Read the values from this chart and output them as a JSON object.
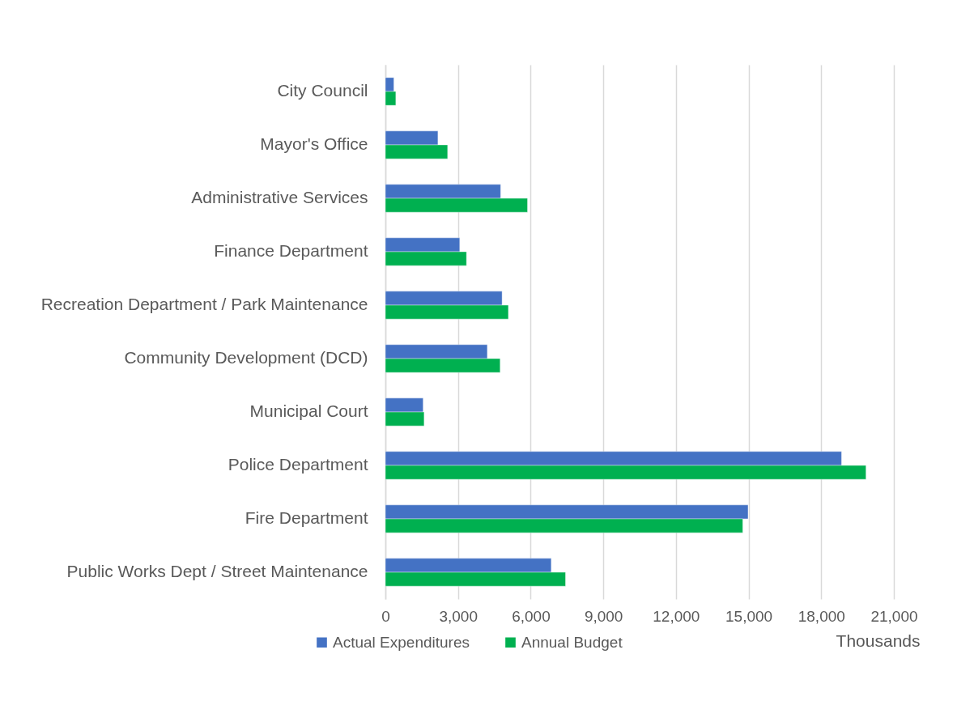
{
  "chart_data": {
    "type": "bar",
    "orientation": "horizontal",
    "xlabel": "Thousands",
    "categories": [
      "City Council",
      "Mayor's Office",
      "Administrative Services",
      "Finance Department",
      "Recreation Department / Park Maintenance",
      "Community Development (DCD)",
      "Municipal Court",
      "Police Department",
      "Fire Department",
      "Public Works Dept / Street Maintenance"
    ],
    "series": [
      {
        "name": "Actual Expenditures",
        "color": "#4472c4",
        "values": [
          350,
          2170,
          4760,
          3070,
          4820,
          4210,
          1560,
          18840,
          14980,
          6850
        ]
      },
      {
        "name": "Annual Budget",
        "color": "#00b050",
        "values": [
          430,
          2570,
          5870,
          3350,
          5080,
          4740,
          1600,
          19850,
          14760,
          7440
        ]
      }
    ],
    "xlim": [
      0,
      21000
    ],
    "xticks": [
      0,
      {
        "value": 3000,
        "label": "3,000"
      },
      {
        "value": 6000,
        "label": "6,000"
      },
      {
        "value": 9000,
        "label": "9,000"
      },
      {
        "value": 12000,
        "label": "12,000"
      },
      {
        "value": 15000,
        "label": "15,000"
      },
      {
        "value": 18000,
        "label": "18,000"
      },
      {
        "value": 21000,
        "label": "21,000"
      }
    ],
    "grid": "x",
    "legend": "bottom"
  }
}
